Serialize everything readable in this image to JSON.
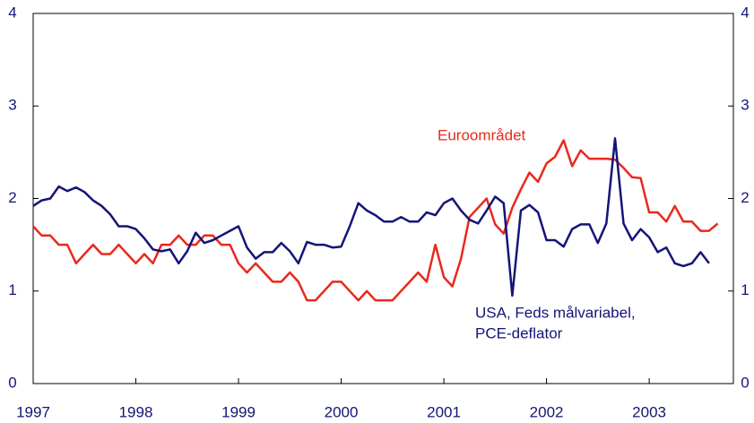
{
  "chart_data": {
    "type": "line",
    "annotations": [
      {
        "text": "Euroområdet",
        "color": "#e8291c"
      },
      {
        "text": "USA, Feds målvariabel,",
        "color": "#141478"
      },
      {
        "text": "PCE-deflator",
        "color": "#141478"
      }
    ],
    "x": [
      1997,
      1997.083,
      1997.167,
      1997.25,
      1997.333,
      1997.417,
      1997.5,
      1997.583,
      1997.667,
      1997.75,
      1997.833,
      1997.917,
      1998,
      1998.083,
      1998.167,
      1998.25,
      1998.333,
      1998.417,
      1998.5,
      1998.583,
      1998.667,
      1998.75,
      1998.833,
      1998.917,
      1999,
      1999.083,
      1999.167,
      1999.25,
      1999.333,
      1999.417,
      1999.5,
      1999.583,
      1999.667,
      1999.75,
      1999.833,
      1999.917,
      2000,
      2000.083,
      2000.167,
      2000.25,
      2000.333,
      2000.417,
      2000.5,
      2000.583,
      2000.667,
      2000.75,
      2000.833,
      2000.917,
      2001,
      2001.083,
      2001.167,
      2001.25,
      2001.333,
      2001.417,
      2001.5,
      2001.583,
      2001.667,
      2001.75,
      2001.833,
      2001.917,
      2002,
      2002.083,
      2002.167,
      2002.25,
      2002.333,
      2002.417,
      2002.5,
      2002.583,
      2002.667,
      2002.75,
      2002.833,
      2002.917,
      2003,
      2003.083,
      2003.167,
      2003.25,
      2003.333,
      2003.417,
      2003.5,
      2003.583,
      2003.667
    ],
    "series": [
      {
        "color": "#e8291c",
        "values": [
          1.7,
          1.6,
          1.6,
          1.5,
          1.5,
          1.3,
          1.4,
          1.5,
          1.4,
          1.4,
          1.5,
          1.4,
          1.3,
          1.4,
          1.3,
          1.5,
          1.5,
          1.6,
          1.5,
          1.5,
          1.6,
          1.6,
          1.5,
          1.5,
          1.3,
          1.2,
          1.3,
          1.2,
          1.1,
          1.1,
          1.2,
          1.1,
          0.9,
          0.9,
          1.0,
          1.1,
          1.1,
          1.0,
          0.9,
          1.0,
          0.9,
          0.9,
          0.9,
          1.0,
          1.1,
          1.2,
          1.1,
          1.5,
          1.15,
          1.05,
          1.35,
          1.8,
          1.9,
          2.0,
          1.72,
          1.62,
          1.9,
          2.1,
          2.28,
          2.18,
          2.38,
          2.45,
          2.63,
          2.35,
          2.52,
          2.43,
          2.43,
          2.43,
          2.42,
          2.33,
          2.23,
          2.22,
          1.85,
          1.85,
          1.75,
          1.92,
          1.75,
          1.75,
          1.65,
          1.65,
          1.73
        ]
      },
      {
        "color": "#141478",
        "values": [
          1.92,
          1.98,
          2.0,
          2.13,
          2.08,
          2.12,
          2.07,
          1.98,
          1.92,
          1.83,
          1.7,
          1.7,
          1.67,
          1.57,
          1.45,
          1.43,
          1.45,
          1.3,
          1.43,
          1.63,
          1.52,
          1.55,
          1.6,
          1.65,
          1.7,
          1.47,
          1.35,
          1.42,
          1.42,
          1.52,
          1.43,
          1.3,
          1.53,
          1.5,
          1.5,
          1.47,
          1.48,
          1.7,
          1.95,
          1.87,
          1.82,
          1.75,
          1.75,
          1.8,
          1.75,
          1.75,
          1.85,
          1.82,
          1.95,
          2.0,
          1.87,
          1.77,
          1.73,
          1.87,
          2.02,
          1.95,
          0.95,
          1.87,
          1.93,
          1.85,
          1.55,
          1.55,
          1.48,
          1.67,
          1.72,
          1.72,
          1.52,
          1.73,
          2.65,
          1.73,
          1.55,
          1.67,
          1.58,
          1.42,
          1.47,
          1.3,
          1.27,
          1.3,
          1.42,
          1.3,
          null
        ]
      }
    ],
    "xlim": [
      1997,
      2003.82
    ],
    "xticks": [
      1997,
      1998,
      1999,
      2000,
      2001,
      2002,
      2003
    ],
    "ylim": [
      0,
      4
    ],
    "yticks": [
      0,
      1,
      2,
      3,
      4
    ],
    "y2lim": [
      0,
      4
    ],
    "y2ticks": [
      0,
      1,
      2,
      3,
      4
    ],
    "axis_color": "#141478"
  }
}
